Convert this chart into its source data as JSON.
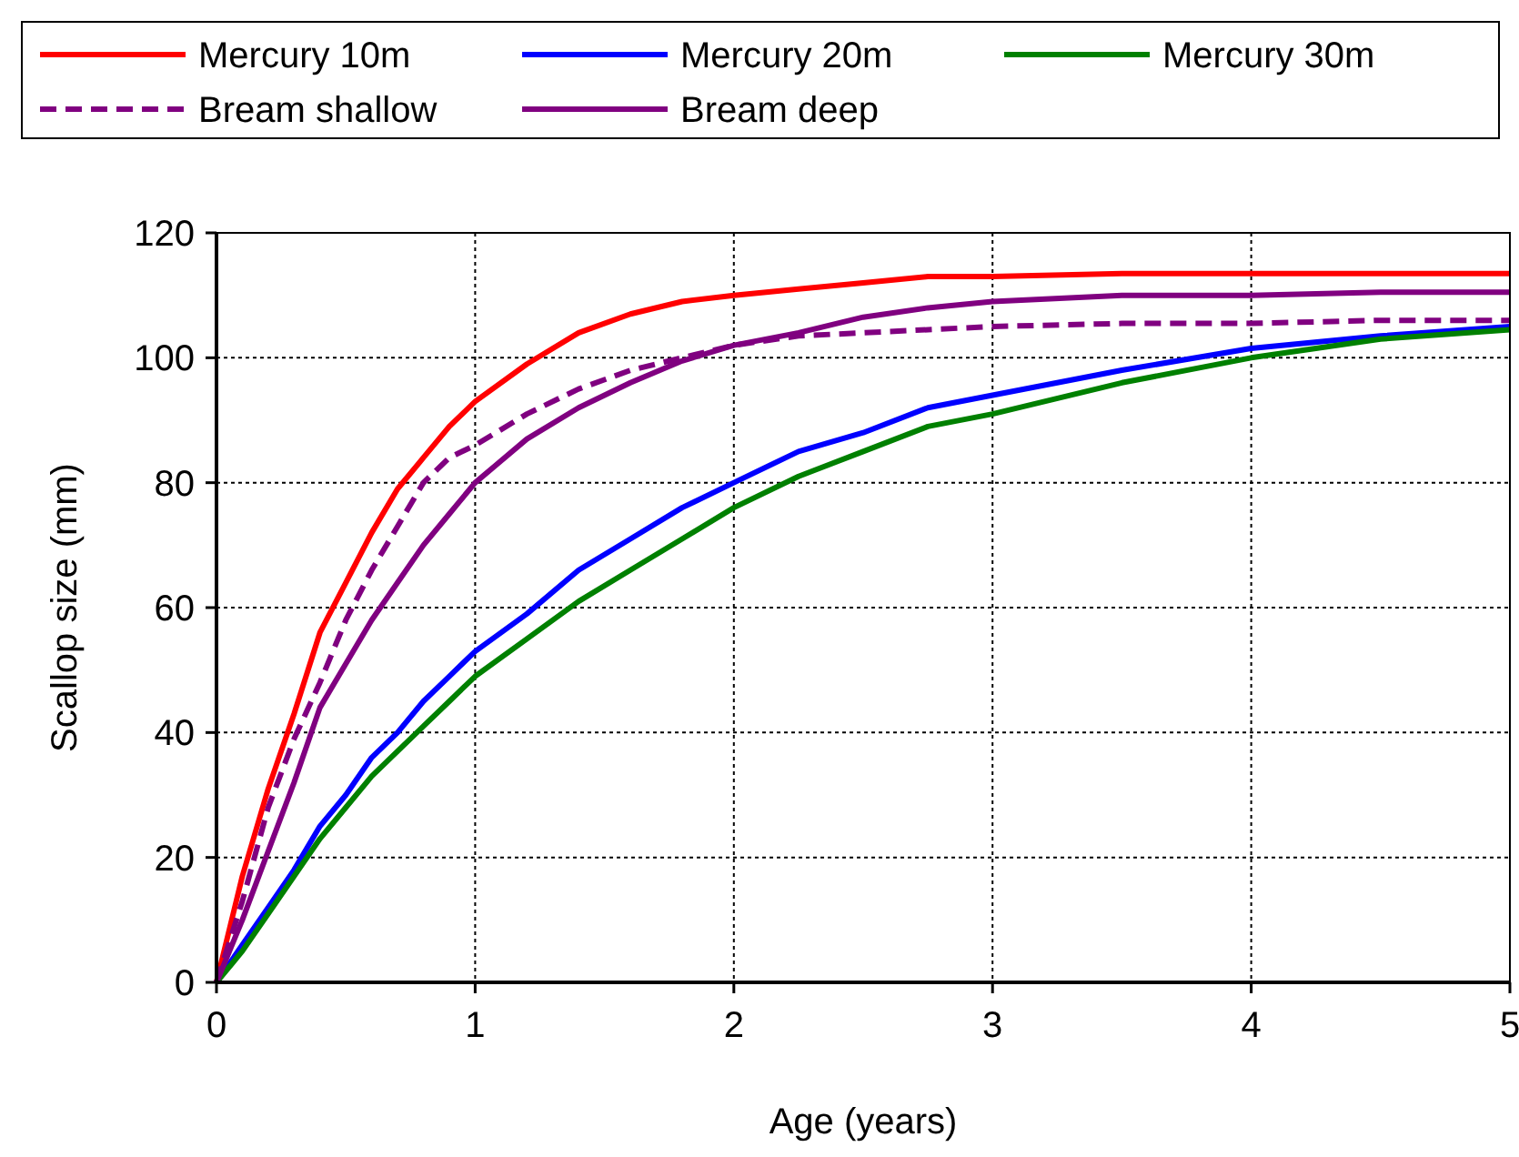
{
  "chart_data": {
    "type": "line",
    "xlabel": "Age (years)",
    "ylabel": "Scallop size (mm)",
    "x": [
      0,
      0.1,
      0.2,
      0.3,
      0.4,
      0.5,
      0.6,
      0.7,
      0.8,
      0.9,
      1,
      1.2,
      1.4,
      1.6,
      1.8,
      2,
      2.25,
      2.5,
      2.75,
      3,
      3.5,
      4,
      4.5,
      5
    ],
    "series": [
      {
        "name": "Mercury 10m",
        "color": "#ff0000",
        "values": [
          0,
          17,
          31,
          43,
          56,
          64,
          72,
          79,
          84,
          89,
          93,
          99,
          104,
          107,
          109,
          110,
          111,
          112,
          113,
          113,
          113.5,
          113.5,
          113.5,
          113.5
        ]
      },
      {
        "name": "Mercury 20m",
        "color": "#0000ff",
        "values": [
          0,
          6,
          12,
          18,
          25,
          30,
          36,
          40,
          45,
          49,
          53,
          59,
          66,
          71,
          76,
          80,
          85,
          88,
          92,
          94,
          98,
          101.5,
          103.5,
          105
        ]
      },
      {
        "name": "Mercury 30m",
        "color": "#008000",
        "values": [
          0,
          5,
          11,
          17,
          23,
          28,
          33,
          37,
          41,
          45,
          49,
          55,
          61,
          66,
          71,
          76,
          81,
          85,
          89,
          91,
          96,
          100,
          103,
          104.5
        ]
      },
      {
        "name": "Bream shallow",
        "color": "#800080",
        "line_style": "dashed",
        "values": [
          0,
          13,
          28,
          39,
          48,
          58,
          66,
          73,
          80,
          84,
          86,
          91,
          95,
          98,
          100,
          102,
          103.5,
          104,
          104.5,
          105,
          105.5,
          105.5,
          106,
          106
        ]
      },
      {
        "name": "Bream deep",
        "color": "#800080",
        "values": [
          0,
          10,
          21,
          32,
          44,
          51,
          58,
          64,
          70,
          75,
          80,
          87,
          92,
          96,
          99.5,
          102,
          104,
          106.5,
          108,
          109,
          110,
          110,
          110.5,
          110.5
        ]
      }
    ],
    "xlim": [
      0,
      5
    ],
    "xticks": [
      0,
      1,
      2,
      3,
      4,
      5
    ],
    "ylim": [
      0,
      120
    ],
    "yticks": [
      0,
      20,
      40,
      60,
      80,
      100,
      120
    ],
    "grid": true,
    "legend": "top",
    "line_style": "solid",
    "marker": "none"
  }
}
